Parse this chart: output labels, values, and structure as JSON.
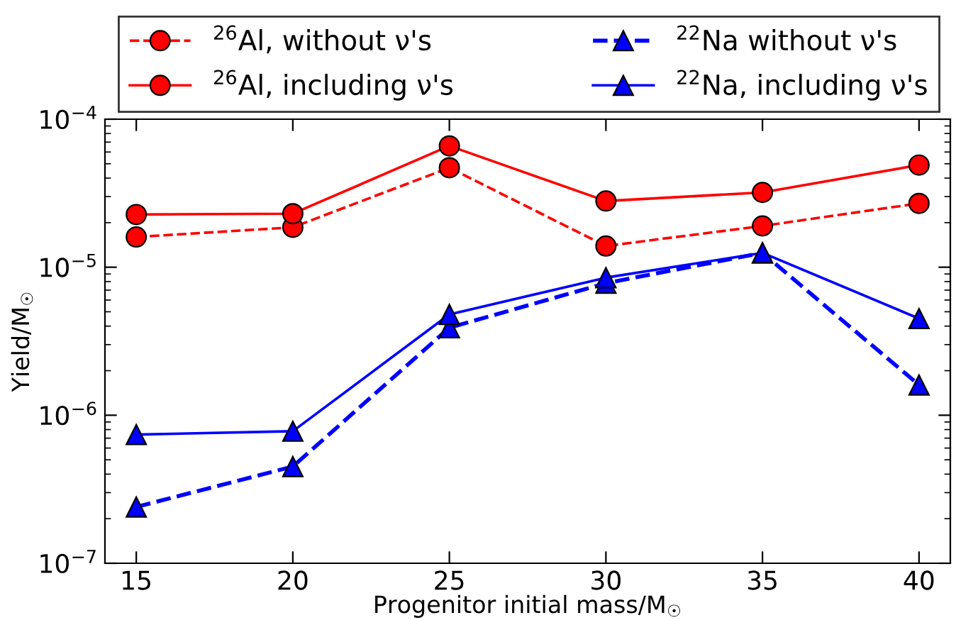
{
  "chart_data": {
    "type": "line",
    "xlabel": "Progenitor initial mass/M$_{☉}$",
    "ylabel": "Yield/M$_{☉}$",
    "x": [
      15,
      20,
      25,
      30,
      35,
      40
    ],
    "series": [
      {
        "name": "$^{26}$Al, without ν's",
        "color": "#ff0000",
        "marker": "circle",
        "line_style": "dashed",
        "values": [
          1.6e-05,
          1.86e-05,
          4.7e-05,
          1.39e-05,
          1.9e-05,
          2.7e-05
        ]
      },
      {
        "name": "$^{26}$Al, including ν's",
        "color": "#ff0000",
        "marker": "circle",
        "line_style": "solid",
        "values": [
          2.27e-05,
          2.3e-05,
          6.6e-05,
          2.8e-05,
          3.2e-05,
          4.9e-05
        ]
      },
      {
        "name": "$^{22}$Na without ν's",
        "color": "#0000ff",
        "marker": "triangle",
        "line_style": "dashed",
        "values": [
          2.4e-07,
          4.5e-07,
          3.9e-06,
          7.8e-06,
          1.25e-05,
          1.6e-06
        ]
      },
      {
        "name": "$^{22}$Na, including ν's",
        "color": "#0000ff",
        "marker": "triangle",
        "line_style": "solid",
        "values": [
          7.4e-07,
          7.8e-07,
          4.8e-06,
          8.5e-06,
          1.25e-05,
          4.5e-06
        ]
      }
    ],
    "log": "y",
    "xlim": [
      14,
      41
    ],
    "ylim": [
      1e-07,
      0.0001
    ],
    "xticks": [
      15,
      20,
      25,
      30,
      35,
      40
    ],
    "yticks": [
      {
        "value": 1e-07,
        "label": "10$^{−7}$"
      },
      {
        "value": 1e-06,
        "label": "10$^{−6}$"
      },
      {
        "value": 1e-05,
        "label": "10$^{−5}$"
      },
      {
        "value": 0.0001,
        "label": "10$^{−4}$"
      }
    ],
    "grid": false,
    "legend": "top"
  }
}
